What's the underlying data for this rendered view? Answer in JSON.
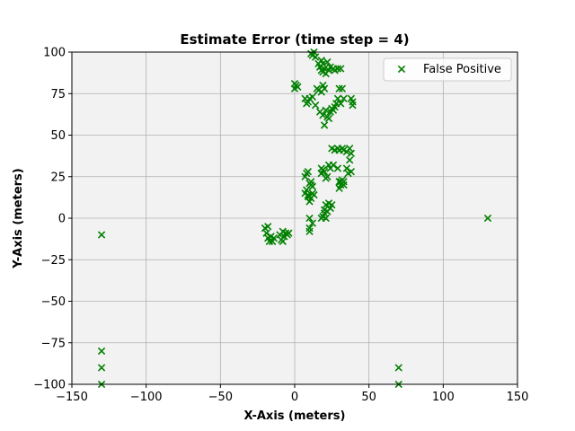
{
  "chart_data": {
    "type": "scatter",
    "title": "Estimate Error (time step = 4)",
    "xlabel": "X-Axis (meters)",
    "ylabel": "Y-Axis (meters)",
    "xlim": [
      -150,
      150
    ],
    "ylim": [
      -100,
      100
    ],
    "xticks": [
      -150,
      -100,
      -50,
      0,
      50,
      100,
      150
    ],
    "yticks": [
      -100,
      -75,
      -50,
      -25,
      0,
      25,
      50,
      75,
      100
    ],
    "xtick_labels": [
      "−150",
      "−100",
      "−50",
      "0",
      "50",
      "100",
      "150"
    ],
    "ytick_labels": [
      "−100",
      "−75",
      "−50",
      "−25",
      "0",
      "25",
      "50",
      "75",
      "100"
    ],
    "grid": true,
    "background_color": "#f2f2f2",
    "marker": "x",
    "legend_position": "top-right",
    "series": [
      {
        "name": "False Positive",
        "color": "#008000",
        "points": [
          [
            -130,
            -10
          ],
          [
            -130,
            -80
          ],
          [
            -130,
            -90
          ],
          [
            -130,
            -100
          ],
          [
            130,
            0
          ],
          [
            70,
            -90
          ],
          [
            70,
            -100
          ],
          [
            -20,
            -6
          ],
          [
            -19,
            -9
          ],
          [
            -18,
            -5
          ],
          [
            -18,
            -12
          ],
          [
            -17,
            -14
          ],
          [
            -16,
            -11
          ],
          [
            -15,
            -14
          ],
          [
            -14,
            -12
          ],
          [
            -10,
            -10
          ],
          [
            -9,
            -13
          ],
          [
            -8,
            -8
          ],
          [
            -8,
            -14
          ],
          [
            -7,
            -11
          ],
          [
            -6,
            -9
          ],
          [
            -5,
            -10
          ],
          [
            -4,
            -9
          ],
          [
            0,
            81
          ],
          [
            0,
            78
          ],
          [
            1,
            80
          ],
          [
            2,
            79
          ],
          [
            7,
            72
          ],
          [
            8,
            69
          ],
          [
            9,
            70
          ],
          [
            10,
            72
          ],
          [
            12,
            73
          ],
          [
            14,
            68
          ],
          [
            11,
            99
          ],
          [
            12,
            98
          ],
          [
            13,
            100
          ],
          [
            14,
            97
          ],
          [
            16,
            93
          ],
          [
            17,
            91
          ],
          [
            18,
            89
          ],
          [
            18,
            95
          ],
          [
            19,
            88
          ],
          [
            19,
            93
          ],
          [
            20,
            90
          ],
          [
            21,
            87
          ],
          [
            22,
            94
          ],
          [
            23,
            89
          ],
          [
            24,
            91
          ],
          [
            26,
            90
          ],
          [
            27,
            89
          ],
          [
            29,
            90
          ],
          [
            31,
            90
          ],
          [
            15,
            78
          ],
          [
            16,
            77
          ],
          [
            18,
            76
          ],
          [
            19,
            80
          ],
          [
            20,
            78
          ],
          [
            17,
            64
          ],
          [
            19,
            62
          ],
          [
            20,
            56
          ],
          [
            21,
            65
          ],
          [
            22,
            61
          ],
          [
            23,
            60
          ],
          [
            24,
            64
          ],
          [
            25,
            66
          ],
          [
            26,
            65
          ],
          [
            27,
            67
          ],
          [
            28,
            69
          ],
          [
            29,
            72
          ],
          [
            30,
            78
          ],
          [
            31,
            69
          ],
          [
            32,
            78
          ],
          [
            33,
            72
          ],
          [
            38,
            72
          ],
          [
            39,
            68
          ],
          [
            39,
            70
          ],
          [
            25,
            42
          ],
          [
            27,
            41
          ],
          [
            29,
            42
          ],
          [
            30,
            41
          ],
          [
            32,
            42
          ],
          [
            33,
            41
          ],
          [
            35,
            40
          ],
          [
            37,
            42
          ],
          [
            38,
            39
          ],
          [
            37,
            35
          ],
          [
            38,
            28
          ],
          [
            36,
            27
          ],
          [
            35,
            30
          ],
          [
            33,
            22
          ],
          [
            31,
            20
          ],
          [
            30,
            18
          ],
          [
            31,
            22
          ],
          [
            32,
            23
          ],
          [
            33,
            20
          ],
          [
            30,
            22
          ],
          [
            29,
            30
          ],
          [
            18,
            30
          ],
          [
            18,
            27
          ],
          [
            19,
            29
          ],
          [
            20,
            28
          ],
          [
            21,
            24
          ],
          [
            22,
            25
          ],
          [
            23,
            32
          ],
          [
            24,
            30
          ],
          [
            26,
            32
          ],
          [
            7,
            25
          ],
          [
            8,
            27
          ],
          [
            9,
            28
          ],
          [
            8,
            17
          ],
          [
            7,
            15
          ],
          [
            9,
            14
          ],
          [
            10,
            13
          ],
          [
            11,
            12
          ],
          [
            12,
            15
          ],
          [
            13,
            14
          ],
          [
            10,
            21
          ],
          [
            11,
            20
          ],
          [
            12,
            19
          ],
          [
            11,
            22
          ],
          [
            10,
            10
          ],
          [
            9,
            13
          ],
          [
            10,
            0
          ],
          [
            10,
            -6
          ],
          [
            10,
            -8
          ],
          [
            12,
            -3
          ],
          [
            18,
            0
          ],
          [
            19,
            1
          ],
          [
            20,
            3
          ],
          [
            20,
            5
          ],
          [
            21,
            0
          ],
          [
            22,
            4
          ],
          [
            23,
            9
          ],
          [
            25,
            8
          ],
          [
            24,
            6
          ],
          [
            21,
            8
          ]
        ]
      }
    ]
  }
}
